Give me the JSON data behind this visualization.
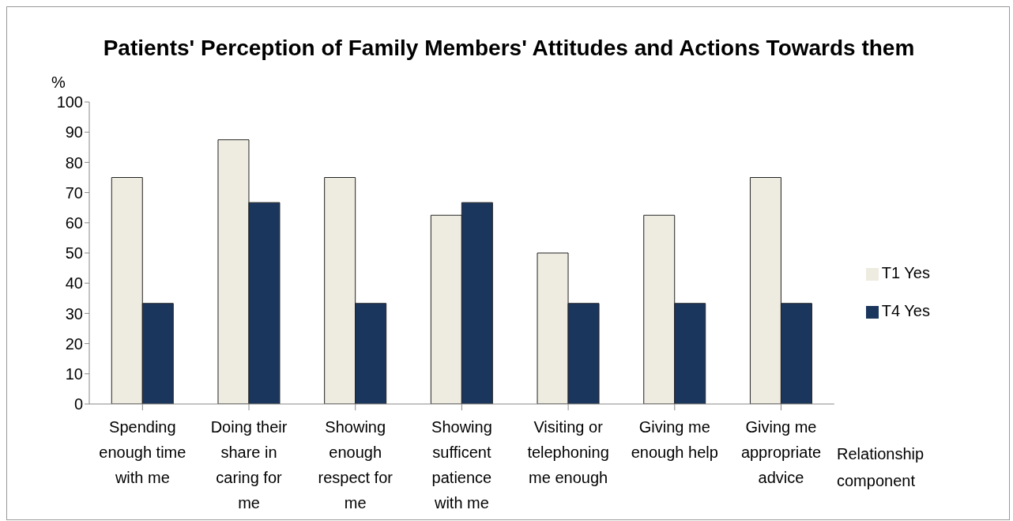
{
  "chart_data": {
    "type": "bar",
    "title": "Patients' Perception of Family Members' Attitudes and Actions Towards them",
    "ylabel": "%",
    "xlabel": "Relationship component",
    "categories": [
      "Spending enough time with me",
      "Doing their share in caring for me",
      "Showing enough respect for me",
      "Showing sufficent patience with me",
      "Visiting or telephoning me enough",
      "Giving me enough help",
      "Giving me appropriate advice"
    ],
    "series": [
      {
        "name": "T1 Yes",
        "color": "#eeebe0",
        "values": [
          75,
          87.5,
          75,
          62.5,
          50,
          62.5,
          75
        ]
      },
      {
        "name": "T4 Yes",
        "color": "#1b365d",
        "values": [
          33.3,
          66.7,
          33.3,
          66.7,
          33.3,
          33.3,
          33.3
        ]
      }
    ],
    "ylim": [
      0,
      100
    ],
    "yticks": [
      0,
      10,
      20,
      30,
      40,
      50,
      60,
      70,
      80,
      90,
      100
    ],
    "legend": "right",
    "grid": false
  }
}
